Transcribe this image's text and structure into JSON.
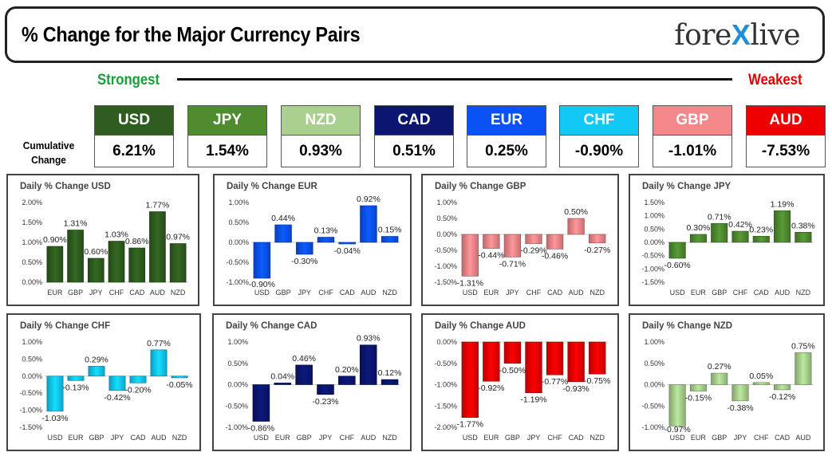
{
  "header": {
    "title": "% Change for the Major Currency Pairs",
    "logo_text": "forexlive",
    "strongest_label": "Strongest",
    "weakest_label": "Weakest",
    "cumulative_label_line1": "Cumulative",
    "cumulative_label_line2": "Change"
  },
  "ranking": [
    {
      "code": "USD",
      "value": "6.21%",
      "color": "#2e5d1f"
    },
    {
      "code": "JPY",
      "value": "1.54%",
      "color": "#4f8b2f"
    },
    {
      "code": "NZD",
      "value": "0.93%",
      "color": "#a9d08e"
    },
    {
      "code": "CAD",
      "value": "0.51%",
      "color": "#0a1670"
    },
    {
      "code": "EUR",
      "value": "0.25%",
      "color": "#0a52f5"
    },
    {
      "code": "CHF",
      "value": "-0.90%",
      "color": "#12c8f5"
    },
    {
      "code": "GBP",
      "value": "-1.01%",
      "color": "#f4878a"
    },
    {
      "code": "AUD",
      "value": "-7.53%",
      "color": "#ef0000"
    }
  ],
  "chart_data": [
    {
      "type": "bar",
      "title": "Daily % Change USD",
      "categories": [
        "EUR",
        "GBP",
        "JPY",
        "CHF",
        "CAD",
        "AUD",
        "NZD"
      ],
      "values": [
        0.9,
        1.31,
        0.6,
        1.03,
        0.86,
        1.77,
        0.97
      ],
      "labels": [
        "0.90%",
        "1.31%",
        "0.60%",
        "1.03%",
        "0.86%",
        "1.77%",
        "0.97%"
      ],
      "ticks": [
        0,
        0.5,
        1.0,
        1.5,
        2.0
      ],
      "tick_labels": [
        "0.00%",
        "0.50%",
        "1.00%",
        "1.50%",
        "2.00%"
      ],
      "ylim": [
        0,
        2.0
      ],
      "color": "#2e5d1f",
      "label_size": 10.5
    },
    {
      "type": "bar",
      "title": "Daily % Change EUR",
      "categories": [
        "USD",
        "GBP",
        "JPY",
        "CHF",
        "CAD",
        "AUD",
        "NZD"
      ],
      "values": [
        -0.9,
        0.44,
        -0.3,
        0.13,
        -0.04,
        0.92,
        0.15
      ],
      "labels": [
        "-0.90%",
        "0.44%",
        "-0.30%",
        "0.13%",
        "-0.04%",
        "0.92%",
        "0.15%"
      ],
      "ticks": [
        -1.0,
        -0.5,
        0,
        0.5,
        1.0
      ],
      "tick_labels": [
        "-1.00%",
        "-0.50%",
        "0.00%",
        "0.50%",
        "1.00%"
      ],
      "ylim": [
        -1.0,
        1.0
      ],
      "color": "#0a52f5",
      "label_size": 10.5
    },
    {
      "type": "bar",
      "title": "Daily % Change GBP",
      "categories": [
        "USD",
        "EUR",
        "JPY",
        "CHF",
        "CAD",
        "AUD",
        "NZD"
      ],
      "values": [
        -1.31,
        -0.44,
        -0.71,
        -0.29,
        -0.46,
        0.5,
        -0.27
      ],
      "labels": [
        "-1.31%",
        "-0.44%",
        "-0.71%",
        "-0.29%",
        "-0.46%",
        "0.50%",
        "-0.27%"
      ],
      "ticks": [
        -1.5,
        -1.0,
        -0.5,
        0,
        0.5,
        1.0
      ],
      "tick_labels": [
        "-1.50%",
        "-1.00%",
        "-0.50%",
        "0.00%",
        "0.50%",
        "1.00%"
      ],
      "ylim": [
        -1.5,
        1.0
      ],
      "color": "#f4878a",
      "label_size": 10.5
    },
    {
      "type": "bar",
      "title": "Daily % Change JPY",
      "categories": [
        "USD",
        "EUR",
        "GBP",
        "CHF",
        "CAD",
        "AUD",
        "NZD"
      ],
      "values": [
        -0.6,
        0.3,
        0.71,
        0.42,
        0.23,
        1.19,
        0.38
      ],
      "labels": [
        "-0.60%",
        "0.30%",
        "0.71%",
        "0.42%",
        "0.23%",
        "1.19%",
        "0.38%"
      ],
      "ticks": [
        -1.5,
        -1.0,
        -0.5,
        0,
        0.5,
        1.0,
        1.5
      ],
      "tick_labels": [
        "-1.50%",
        "-1.00%",
        "-0.50%",
        "0.00%",
        "0.50%",
        "1.00%",
        "1.50%"
      ],
      "ylim": [
        -1.5,
        1.5
      ],
      "color": "#4f8b2f",
      "label_size": 8
    },
    {
      "type": "bar",
      "title": "Daily % Change CHF",
      "categories": [
        "USD",
        "EUR",
        "GBP",
        "JPY",
        "CAD",
        "AUD",
        "NZD"
      ],
      "values": [
        -1.03,
        -0.13,
        0.29,
        -0.42,
        -0.2,
        0.77,
        -0.05
      ],
      "labels": [
        "-1.03%",
        "-0.13%",
        "0.29%",
        "-0.42%",
        "-0.20%",
        "0.77%",
        "-0.05%"
      ],
      "ticks": [
        -1.5,
        -1.0,
        -0.5,
        0,
        0.5,
        1.0
      ],
      "tick_labels": [
        "-1.50%",
        "-1.00%",
        "-0.50%",
        "0.00%",
        "0.50%",
        "1.00%"
      ],
      "ylim": [
        -1.5,
        1.0
      ],
      "color": "#12c8f5",
      "label_size": 10.5
    },
    {
      "type": "bar",
      "title": "Daily % Change CAD",
      "categories": [
        "USD",
        "EUR",
        "GBP",
        "JPY",
        "CHF",
        "AUD",
        "NZD"
      ],
      "values": [
        -0.86,
        0.04,
        0.46,
        -0.23,
        0.2,
        0.93,
        0.12
      ],
      "labels": [
        "-0.86%",
        "0.04%",
        "0.46%",
        "-0.23%",
        "0.20%",
        "0.93%",
        "0.12%"
      ],
      "ticks": [
        -1.0,
        -0.5,
        0,
        0.5,
        1.0
      ],
      "tick_labels": [
        "-1.00%",
        "-0.50%",
        "0.00%",
        "0.50%",
        "1.00%"
      ],
      "ylim": [
        -1.0,
        1.0
      ],
      "color": "#0a1670",
      "label_size": 8
    },
    {
      "type": "bar",
      "title": "Daily % Change AUD",
      "categories": [
        "USD",
        "EUR",
        "GBP",
        "JPY",
        "CHF",
        "CAD",
        "NZD"
      ],
      "values": [
        -1.77,
        -0.92,
        -0.5,
        -1.19,
        -0.77,
        -0.93,
        -0.75
      ],
      "labels": [
        "-1.77%",
        "-0.92%",
        "-0.50%",
        "-1.19%",
        "-0.77%",
        "-0.93%",
        "-0.75%"
      ],
      "ticks": [
        -2.0,
        -1.5,
        -1.0,
        -0.5,
        0
      ],
      "tick_labels": [
        "-2.00%",
        "-1.50%",
        "-1.00%",
        "-0.50%",
        "0.00%"
      ],
      "ylim": [
        -2.0,
        0
      ],
      "color": "#ef0000",
      "label_size": 10.5
    },
    {
      "type": "bar",
      "title": "Daily % Change NZD",
      "categories": [
        "USD",
        "EUR",
        "GBP",
        "JPY",
        "CHF",
        "CAD",
        "AUD"
      ],
      "values": [
        -0.97,
        -0.15,
        0.27,
        -0.38,
        0.05,
        -0.12,
        0.75
      ],
      "labels": [
        "-0.97%",
        "-0.15%",
        "0.27%",
        "-0.38%",
        "0.05%",
        "-0.12%",
        "0.75%"
      ],
      "ticks": [
        -1.0,
        -0.5,
        0,
        0.5,
        1.0
      ],
      "tick_labels": [
        "-1.00%",
        "-0.50%",
        "0.00%",
        "0.50%",
        "1.00%"
      ],
      "ylim": [
        -1.0,
        1.0
      ],
      "color": "#a9d08e",
      "label_size": 10.5
    }
  ]
}
